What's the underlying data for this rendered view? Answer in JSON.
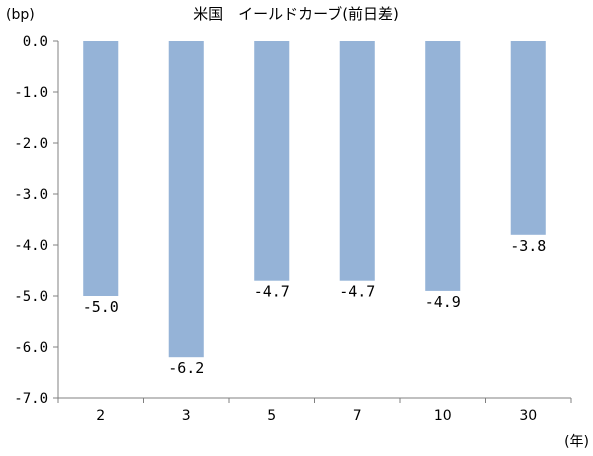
{
  "chart_data": {
    "type": "bar",
    "title": "米国　イールドカーブ(前日差)",
    "y_unit_label": "(bp)",
    "x_unit_label": "(年)",
    "categories": [
      "2",
      "3",
      "5",
      "7",
      "10",
      "30"
    ],
    "values": [
      -5.0,
      -6.2,
      -4.7,
      -4.7,
      -4.9,
      -3.8
    ],
    "data_labels": [
      "-5.0",
      "-6.2",
      "-4.7",
      "-4.7",
      "-4.9",
      "-3.8"
    ],
    "ylim": [
      -7.0,
      0.0
    ],
    "y_ticks": [
      "0.0",
      "-1.0",
      "-2.0",
      "-3.0",
      "-4.0",
      "-5.0",
      "-6.0",
      "-7.0"
    ],
    "grid": false,
    "legend": "none",
    "colors": {
      "bar": "#95b3d7",
      "axis": "#808080"
    }
  }
}
